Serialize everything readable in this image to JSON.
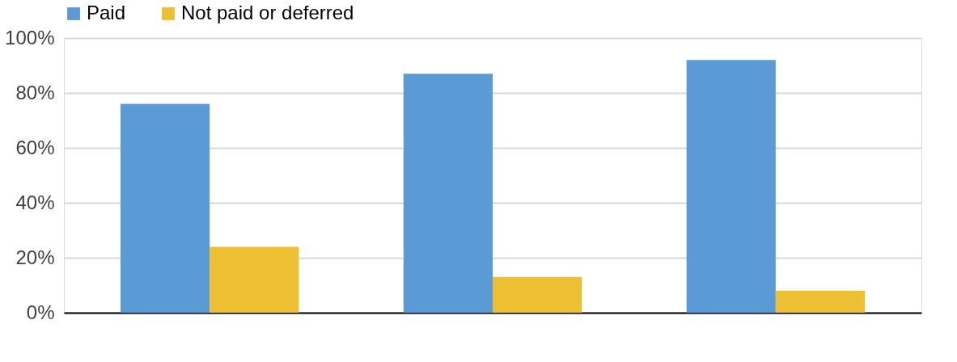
{
  "chart_data": {
    "type": "bar",
    "categories": [
      null,
      null,
      null
    ],
    "series": [
      {
        "name": "Paid",
        "color": "#5b9bd5",
        "values": [
          76,
          87,
          92
        ]
      },
      {
        "name": "Not paid or deferred",
        "color": "#edbf33",
        "values": [
          24,
          13,
          8
        ]
      }
    ],
    "ylim": [
      0,
      100
    ],
    "yticks": [
      {
        "value": 0,
        "label": "0%"
      },
      {
        "value": 20,
        "label": "20%"
      },
      {
        "value": 40,
        "label": "40%"
      },
      {
        "value": 60,
        "label": "60%"
      },
      {
        "value": 80,
        "label": "80%"
      },
      {
        "value": 100,
        "label": "100%"
      }
    ],
    "grid": "y",
    "legend": "top",
    "tick_labels": "y"
  }
}
